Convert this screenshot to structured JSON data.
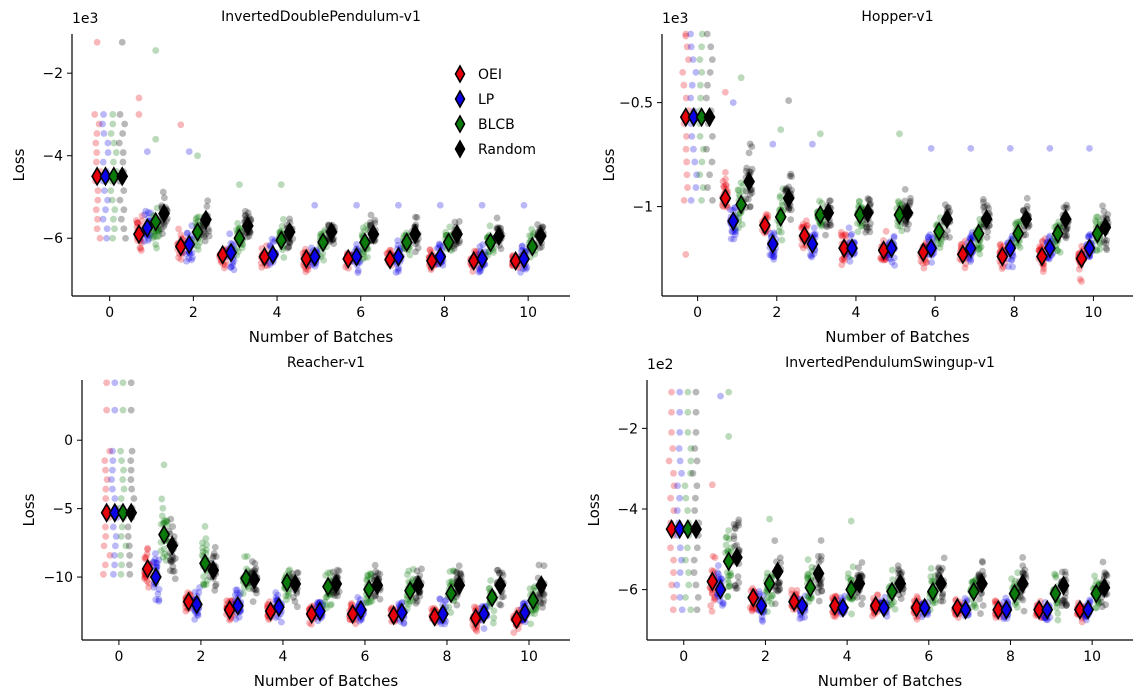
{
  "figure": {
    "legend": [
      {
        "label": "OEI",
        "color": "#e6000b"
      },
      {
        "label": "LP",
        "color": "#0b00e6"
      },
      {
        "label": "BLCB",
        "color": "#0a7a0a"
      },
      {
        "label": "Random",
        "color": "#000000"
      }
    ]
  },
  "chart_data": [
    {
      "type": "scatter",
      "title": "InvertedDoublePendulum-v1",
      "xlabel": "Number of Batches",
      "ylabel": "Loss",
      "multiplier_label": "1e3",
      "xlim": [
        -0.9,
        11.0
      ],
      "ylim": [
        -7.4,
        -1.05
      ],
      "xticks": [
        0,
        2,
        4,
        6,
        8,
        10
      ],
      "yticks": [
        -2,
        -4,
        -6
      ],
      "legend_position": "upper-right",
      "series": [
        {
          "name": "OEI",
          "color": "#e6000b",
          "x": [
            -0.3,
            0.7,
            1.7,
            2.7,
            3.7,
            4.7,
            5.7,
            6.7,
            7.7,
            8.7,
            9.7
          ],
          "mean": [
            -4.5,
            -5.9,
            -6.2,
            -6.4,
            -6.45,
            -6.5,
            -6.5,
            -6.52,
            -6.55,
            -6.55,
            -6.55
          ],
          "spread": [
            1.5,
            0.55,
            0.5,
            0.4,
            0.35,
            0.35,
            0.3,
            0.3,
            0.3,
            0.3,
            0.3
          ],
          "outliers": [
            [
              -0.3,
              -1.25
            ],
            [
              0.7,
              -2.6
            ],
            [
              0.7,
              -3.0
            ],
            [
              1.7,
              -3.25
            ]
          ]
        },
        {
          "name": "LP",
          "color": "#0b00e6",
          "x": [
            -0.1,
            0.9,
            1.9,
            2.9,
            3.9,
            4.9,
            5.9,
            6.9,
            7.9,
            8.9,
            9.9
          ],
          "mean": [
            -4.5,
            -5.75,
            -6.15,
            -6.35,
            -6.4,
            -6.45,
            -6.45,
            -6.45,
            -6.45,
            -6.5,
            -6.5
          ],
          "spread": [
            1.5,
            0.6,
            0.55,
            0.5,
            0.45,
            0.45,
            0.45,
            0.45,
            0.45,
            0.45,
            0.45
          ],
          "outliers": [
            [
              0.9,
              -3.9
            ],
            [
              1.9,
              -3.9
            ],
            [
              4.9,
              -5.2
            ],
            [
              5.9,
              -5.2
            ],
            [
              6.9,
              -5.2
            ],
            [
              7.9,
              -5.2
            ],
            [
              8.9,
              -5.2
            ],
            [
              9.9,
              -5.2
            ]
          ]
        },
        {
          "name": "BLCB",
          "color": "#0a7a0a",
          "x": [
            0.1,
            1.1,
            2.1,
            3.1,
            4.1,
            5.1,
            6.1,
            7.1,
            8.1,
            9.1,
            10.1
          ],
          "mean": [
            -4.5,
            -5.6,
            -5.85,
            -6.0,
            -6.05,
            -6.1,
            -6.1,
            -6.1,
            -6.1,
            -6.1,
            -6.2
          ],
          "spread": [
            1.5,
            0.75,
            0.55,
            0.5,
            0.5,
            0.5,
            0.5,
            0.5,
            0.5,
            0.5,
            0.5
          ],
          "outliers": [
            [
              1.1,
              -1.45
            ],
            [
              1.1,
              -3.6
            ],
            [
              2.1,
              -4.0
            ],
            [
              3.1,
              -4.7
            ],
            [
              4.1,
              -4.7
            ]
          ]
        },
        {
          "name": "Random",
          "color": "#000000",
          "x": [
            0.3,
            1.3,
            2.3,
            3.3,
            4.3,
            5.3,
            6.3,
            7.3,
            8.3,
            9.3,
            10.3
          ],
          "mean": [
            -4.5,
            -5.4,
            -5.55,
            -5.7,
            -5.85,
            -5.85,
            -5.9,
            -5.9,
            -5.9,
            -5.95,
            -5.95
          ],
          "spread": [
            1.5,
            0.6,
            0.55,
            0.5,
            0.5,
            0.5,
            0.5,
            0.5,
            0.5,
            0.5,
            0.5
          ],
          "outliers": [
            [
              0.3,
              -1.25
            ]
          ]
        }
      ]
    },
    {
      "type": "scatter",
      "title": "Hopper-v1",
      "xlabel": "Number of Batches",
      "ylabel": "Loss",
      "multiplier_label": "1e3",
      "xlim": [
        -0.9,
        11.0
      ],
      "ylim": [
        -1.43,
        -0.17
      ],
      "xticks": [
        0,
        2,
        4,
        6,
        8,
        10
      ],
      "yticks": [
        -0.5,
        -1.0
      ],
      "series": [
        {
          "name": "OEI",
          "color": "#e6000b",
          "x": [
            -0.3,
            0.7,
            1.7,
            2.7,
            3.7,
            4.7,
            5.7,
            6.7,
            7.7,
            8.7,
            9.7
          ],
          "mean": [
            -0.57,
            -0.96,
            -1.09,
            -1.14,
            -1.2,
            -1.21,
            -1.22,
            -1.23,
            -1.24,
            -1.24,
            -1.25
          ],
          "spread": [
            0.4,
            0.12,
            0.1,
            0.1,
            0.1,
            0.1,
            0.1,
            0.1,
            0.1,
            0.1,
            0.1
          ],
          "outliers": [
            [
              -0.3,
              -0.18
            ],
            [
              -0.3,
              -1.23
            ],
            [
              0.7,
              -0.45
            ],
            [
              9.7,
              -1.36
            ]
          ]
        },
        {
          "name": "LP",
          "color": "#0b00e6",
          "x": [
            -0.1,
            0.9,
            1.9,
            2.9,
            3.9,
            4.9,
            5.9,
            6.9,
            7.9,
            8.9,
            9.9
          ],
          "mean": [
            -0.57,
            -1.07,
            -1.18,
            -1.18,
            -1.2,
            -1.2,
            -1.2,
            -1.2,
            -1.2,
            -1.2,
            -1.2
          ],
          "spread": [
            0.4,
            0.12,
            0.1,
            0.1,
            0.1,
            0.1,
            0.1,
            0.1,
            0.1,
            0.1,
            0.1
          ],
          "outliers": [
            [
              0.9,
              -0.5
            ],
            [
              1.9,
              -0.7
            ],
            [
              2.9,
              -0.7
            ],
            [
              5.9,
              -0.72
            ],
            [
              6.9,
              -0.72
            ],
            [
              7.9,
              -0.72
            ],
            [
              8.9,
              -0.72
            ],
            [
              9.9,
              -0.72
            ]
          ]
        },
        {
          "name": "BLCB",
          "color": "#0a7a0a",
          "x": [
            0.1,
            1.1,
            2.1,
            3.1,
            4.1,
            5.1,
            6.1,
            7.1,
            8.1,
            9.1,
            10.1
          ],
          "mean": [
            -0.57,
            -0.99,
            -1.05,
            -1.04,
            -1.04,
            -1.04,
            -1.12,
            -1.13,
            -1.13,
            -1.13,
            -1.13
          ],
          "spread": [
            0.4,
            0.15,
            0.15,
            0.12,
            0.12,
            0.12,
            0.12,
            0.12,
            0.12,
            0.12,
            0.12
          ],
          "outliers": [
            [
              1.1,
              -0.38
            ],
            [
              2.1,
              -0.63
            ],
            [
              3.1,
              -0.65
            ],
            [
              5.1,
              -0.65
            ]
          ]
        },
        {
          "name": "Random",
          "color": "#000000",
          "x": [
            0.3,
            1.3,
            2.3,
            3.3,
            4.3,
            5.3,
            6.3,
            7.3,
            8.3,
            9.3,
            10.3
          ],
          "mean": [
            -0.57,
            -0.88,
            -0.96,
            -1.03,
            -1.03,
            -1.03,
            -1.06,
            -1.06,
            -1.06,
            -1.06,
            -1.1
          ],
          "spread": [
            0.4,
            0.2,
            0.15,
            0.13,
            0.13,
            0.13,
            0.13,
            0.13,
            0.13,
            0.13,
            0.13
          ],
          "outliers": [
            [
              2.3,
              -0.49
            ]
          ]
        }
      ]
    },
    {
      "type": "scatter",
      "title": "Reacher-v1",
      "xlabel": "Number of Batches",
      "ylabel": "Loss",
      "multiplier_label": "",
      "xlim": [
        -0.9,
        11.0
      ],
      "ylim": [
        -14.6,
        4.4
      ],
      "xticks": [
        0,
        2,
        4,
        6,
        8,
        10
      ],
      "yticks": [
        0,
        -5,
        -10
      ],
      "series": [
        {
          "name": "OEI",
          "color": "#e6000b",
          "x": [
            -0.3,
            0.7,
            1.7,
            2.7,
            3.7,
            4.7,
            5.7,
            6.7,
            7.7,
            8.7,
            9.7
          ],
          "mean": [
            -5.3,
            -9.4,
            -11.8,
            -12.4,
            -12.5,
            -12.7,
            -12.7,
            -12.8,
            -12.9,
            -13.0,
            -13.1
          ],
          "spread": [
            4.5,
            1.8,
            1.4,
            1.1,
            1.0,
            1.0,
            1.0,
            1.0,
            1.0,
            1.0,
            1.0
          ],
          "outliers": [
            [
              -0.3,
              4.2
            ],
            [
              -0.3,
              2.2
            ],
            [
              0.7,
              -7.9
            ]
          ]
        },
        {
          "name": "LP",
          "color": "#0b00e6",
          "x": [
            -0.1,
            0.9,
            1.9,
            2.9,
            3.9,
            4.9,
            5.9,
            6.9,
            7.9,
            8.9,
            9.9
          ],
          "mean": [
            -5.3,
            -10.0,
            -12.0,
            -12.1,
            -12.2,
            -12.5,
            -12.4,
            -12.6,
            -12.7,
            -12.7,
            -12.6
          ],
          "spread": [
            4.5,
            2.2,
            1.6,
            1.4,
            1.3,
            1.3,
            1.3,
            1.3,
            1.3,
            1.3,
            1.3
          ],
          "outliers": [
            [
              -0.1,
              4.2
            ],
            [
              -0.1,
              2.2
            ]
          ]
        },
        {
          "name": "BLCB",
          "color": "#0a7a0a",
          "x": [
            0.1,
            1.1,
            2.1,
            3.1,
            4.1,
            5.1,
            6.1,
            7.1,
            8.1,
            9.1,
            10.1
          ],
          "mean": [
            -5.3,
            -6.9,
            -9.0,
            -10.1,
            -10.4,
            -10.7,
            -10.9,
            -11.0,
            -11.2,
            -11.5,
            -11.7
          ],
          "spread": [
            4.5,
            3.4,
            2.4,
            2.1,
            2.0,
            2.0,
            2.0,
            2.0,
            2.0,
            2.0,
            2.0
          ],
          "outliers": [
            [
              0.1,
              4.2
            ],
            [
              0.1,
              2.2
            ],
            [
              1.1,
              -1.8
            ],
            [
              2.1,
              -6.3
            ]
          ]
        },
        {
          "name": "Random",
          "color": "#000000",
          "x": [
            0.3,
            1.3,
            2.3,
            3.3,
            4.3,
            5.3,
            6.3,
            7.3,
            8.3,
            9.3,
            10.3
          ],
          "mean": [
            -5.3,
            -7.7,
            -9.5,
            -10.2,
            -10.5,
            -10.5,
            -10.6,
            -10.6,
            -10.6,
            -10.6,
            -10.6
          ],
          "spread": [
            4.5,
            2.6,
            2.0,
            2.0,
            2.0,
            2.0,
            2.0,
            2.0,
            2.0,
            2.0,
            2.0
          ],
          "outliers": [
            [
              0.3,
              4.2
            ],
            [
              0.3,
              2.2
            ]
          ]
        }
      ]
    },
    {
      "type": "scatter",
      "title": "InvertedPendulumSwingup-v1",
      "xlabel": "Number of Batches",
      "ylabel": "Loss",
      "multiplier_label": "1e2",
      "xlim": [
        -0.9,
        11.0
      ],
      "ylim": [
        -7.25,
        -0.8
      ],
      "xticks": [
        0,
        2,
        4,
        6,
        8,
        10
      ],
      "yticks": [
        -2,
        -4,
        -6
      ],
      "series": [
        {
          "name": "OEI",
          "color": "#e6000b",
          "x": [
            -0.3,
            0.7,
            1.7,
            2.7,
            3.7,
            4.7,
            5.7,
            6.7,
            7.7,
            8.7,
            9.7
          ],
          "mean": [
            -4.5,
            -5.8,
            -6.2,
            -6.3,
            -6.4,
            -6.4,
            -6.45,
            -6.45,
            -6.5,
            -6.5,
            -6.5
          ],
          "spread": [
            2.0,
            0.9,
            0.5,
            0.4,
            0.35,
            0.35,
            0.35,
            0.35,
            0.35,
            0.35,
            0.35
          ],
          "outliers": [
            [
              -0.3,
              -1.1
            ],
            [
              -0.3,
              -1.6
            ],
            [
              -0.3,
              -2.1
            ],
            [
              0.7,
              -3.4
            ]
          ]
        },
        {
          "name": "LP",
          "color": "#0b00e6",
          "x": [
            -0.1,
            0.9,
            1.9,
            2.9,
            3.9,
            4.9,
            5.9,
            6.9,
            7.9,
            8.9,
            9.9
          ],
          "mean": [
            -4.5,
            -6.0,
            -6.4,
            -6.4,
            -6.45,
            -6.45,
            -6.45,
            -6.5,
            -6.5,
            -6.5,
            -6.5
          ],
          "spread": [
            2.0,
            0.8,
            0.45,
            0.4,
            0.35,
            0.35,
            0.35,
            0.35,
            0.35,
            0.35,
            0.35
          ],
          "outliers": [
            [
              -0.1,
              -1.1
            ],
            [
              -0.1,
              -1.6
            ],
            [
              -0.1,
              -2.1
            ],
            [
              0.9,
              -1.2
            ]
          ]
        },
        {
          "name": "BLCB",
          "color": "#0a7a0a",
          "x": [
            0.1,
            1.1,
            2.1,
            3.1,
            4.1,
            5.1,
            6.1,
            7.1,
            8.1,
            9.1,
            10.1
          ],
          "mean": [
            -4.5,
            -5.3,
            -5.85,
            -5.95,
            -6.0,
            -6.05,
            -6.05,
            -6.05,
            -6.1,
            -6.1,
            -6.1
          ],
          "spread": [
            2.0,
            1.2,
            0.9,
            0.75,
            0.7,
            0.65,
            0.65,
            0.65,
            0.65,
            0.65,
            0.6
          ],
          "outliers": [
            [
              0.1,
              -1.1
            ],
            [
              0.1,
              -1.6
            ],
            [
              0.1,
              -2.1
            ],
            [
              1.1,
              -1.1
            ],
            [
              1.1,
              -2.2
            ],
            [
              2.1,
              -4.25
            ],
            [
              4.1,
              -4.3
            ]
          ]
        },
        {
          "name": "Random",
          "color": "#000000",
          "x": [
            0.3,
            1.3,
            2.3,
            3.3,
            4.3,
            5.3,
            6.3,
            7.3,
            8.3,
            9.3,
            10.3
          ],
          "mean": [
            -4.5,
            -5.2,
            -5.55,
            -5.6,
            -5.85,
            -5.85,
            -5.85,
            -5.85,
            -5.85,
            -5.9,
            -5.95
          ],
          "spread": [
            2.0,
            1.3,
            1.0,
            0.9,
            0.8,
            0.75,
            0.75,
            0.75,
            0.75,
            0.75,
            0.7
          ],
          "outliers": [
            [
              0.3,
              -1.1
            ],
            [
              0.3,
              -1.6
            ],
            [
              0.3,
              -2.1
            ]
          ]
        }
      ]
    }
  ]
}
